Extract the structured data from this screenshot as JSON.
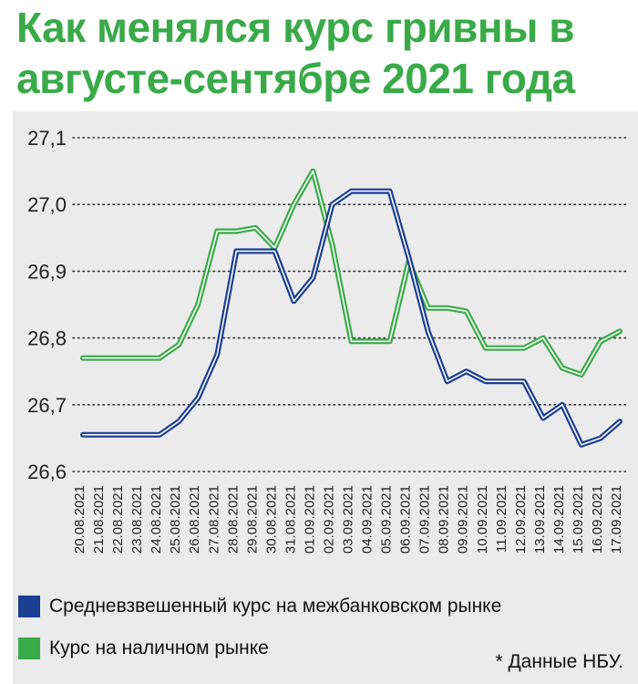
{
  "title": {
    "line1": "Как менялся курс гривны в",
    "line2": "августе-сентябре 2021 года"
  },
  "colors": {
    "title": "#3aaa49",
    "interbank": "#1b3d92",
    "cash": "#3aaa49",
    "panel": "#ebebeb"
  },
  "source_note": "* Данные НБУ.",
  "chart_data": {
    "type": "line",
    "title": "Как менялся курс гривны в августе-сентябре 2021 года",
    "x": [
      "20.08.2021",
      "21.08.2021",
      "22.08.2021",
      "23.08.2021",
      "24.08.2021",
      "25.08.2021",
      "26.08.2021",
      "27.08.2021",
      "28.08.2021",
      "29.08.2021",
      "30.08.2021",
      "31.08.2021",
      "01.09.2021",
      "02.09.2021",
      "03.09.2021",
      "04.09.2021",
      "05.09.2021",
      "06.09.2021",
      "07.09.2021",
      "08.09.2021",
      "09.09.2021",
      "10.09.2021",
      "11.09.2021",
      "12.09.2021",
      "13.09.2021",
      "14.09.2021",
      "15.09.2021",
      "16.09.2021",
      "17.09.2021"
    ],
    "y_ticks": [
      "27,1",
      "27,0",
      "26,9",
      "26,8",
      "26,7",
      "26,6"
    ],
    "ylim": [
      26.6,
      27.1
    ],
    "grid": "horizontal dotted",
    "legend_position": "bottom",
    "series": [
      {
        "name": "Средневзвешенный курс на межбанковском рынке",
        "values": [
          26.655,
          26.655,
          26.655,
          26.655,
          26.655,
          26.675,
          26.71,
          26.775,
          26.93,
          26.93,
          26.93,
          26.855,
          26.89,
          27.0,
          27.02,
          27.02,
          27.02,
          26.92,
          26.81,
          26.735,
          26.75,
          26.735,
          26.735,
          26.735,
          26.68,
          26.7,
          26.64,
          26.65,
          26.675
        ]
      },
      {
        "name": "Курс на наличном рынке",
        "values": [
          26.77,
          26.77,
          26.77,
          26.77,
          26.77,
          26.79,
          26.85,
          26.96,
          26.96,
          26.965,
          26.935,
          27.0,
          27.05,
          26.94,
          26.795,
          26.795,
          26.795,
          26.915,
          26.845,
          26.845,
          26.84,
          26.785,
          26.785,
          26.785,
          26.8,
          26.755,
          26.745,
          26.795,
          26.81
        ]
      }
    ]
  }
}
